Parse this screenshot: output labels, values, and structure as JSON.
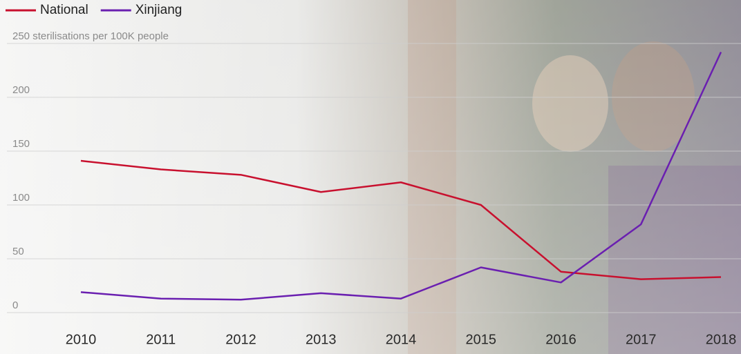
{
  "chart_data": {
    "type": "line",
    "categories": [
      "2010",
      "2011",
      "2012",
      "2013",
      "2014",
      "2015",
      "2016",
      "2017",
      "2018"
    ],
    "series": [
      {
        "name": "National",
        "color": "#c8102e",
        "values": [
          141,
          133,
          128,
          112,
          121,
          100,
          38,
          31,
          33
        ]
      },
      {
        "name": "Xinjiang",
        "color": "#6a1fb0",
        "values": [
          19,
          13,
          12,
          18,
          13,
          42,
          28,
          82,
          242
        ]
      }
    ],
    "ylim": [
      0,
      250
    ],
    "yticks": [
      0,
      50,
      100,
      150,
      200,
      {
        "value": 250,
        "label": "250 sterilisations per 100K people"
      }
    ],
    "grid": true,
    "legend": "top-left"
  }
}
